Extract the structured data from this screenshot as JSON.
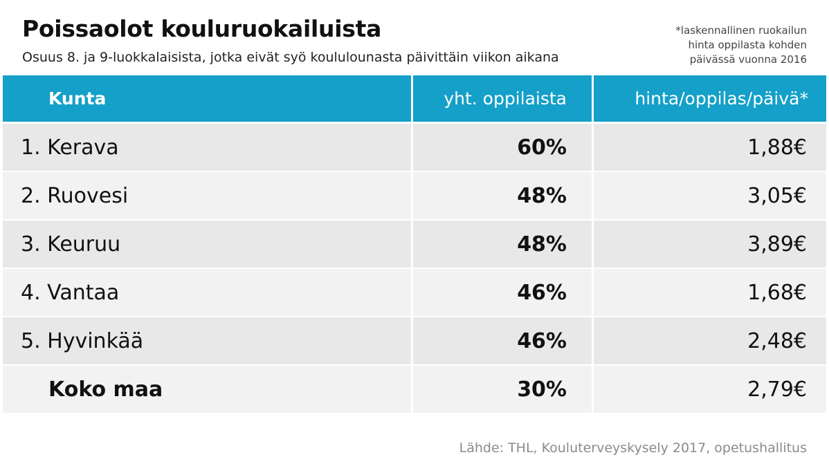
{
  "chart_data": {
    "type": "table",
    "title": "Poissaolot kouluruokailuista",
    "subtitle": "Osuus 8. ja 9-luokkalaisista, jotka eivät syö koululounasta päivittäin viikon aikana",
    "footnote": [
      "*laskennallinen ruokailun",
      "hinta oppilasta kohden",
      "päivässä vuonna 2016"
    ],
    "columns": [
      "Kunta",
      "yht. oppilaista",
      "hinta/oppilas/päivä*"
    ],
    "rows": [
      {
        "kunta": "1. Kerava",
        "osuus": "60%",
        "hinta": "1,88€"
      },
      {
        "kunta": "2. Ruovesi",
        "osuus": "48%",
        "hinta": "3,05€"
      },
      {
        "kunta": "3. Keuruu",
        "osuus": "48%",
        "hinta": "3,89€"
      },
      {
        "kunta": "4. Vantaa",
        "osuus": "46%",
        "hinta": "1,68€"
      },
      {
        "kunta": "5. Hyvinkää",
        "osuus": "46%",
        "hinta": "2,48€"
      },
      {
        "kunta": "Koko maa",
        "osuus": "30%",
        "hinta": "2,79€"
      }
    ],
    "source": "Lähde: THL, Kouluterveyskysely 2017, opetushallitus"
  },
  "colors": {
    "header_background": "#14a0c8",
    "row_background_dark": "#e8e8e8",
    "row_background_light": "#f2f2f2",
    "source_text": "#8a8a8a"
  }
}
